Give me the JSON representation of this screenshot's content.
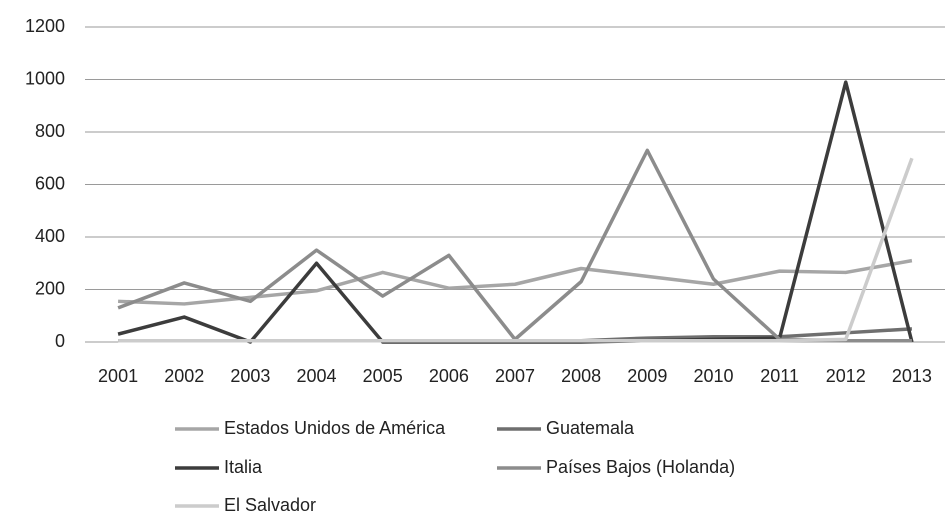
{
  "chart_data": {
    "type": "line",
    "categories": [
      "2001",
      "2002",
      "2003",
      "2004",
      "2005",
      "2006",
      "2007",
      "2008",
      "2009",
      "2010",
      "2011",
      "2012",
      "2013"
    ],
    "series": [
      {
        "name": "Estados Unidos de América",
        "color": "#a6a6a6",
        "values": [
          155,
          145,
          170,
          195,
          265,
          205,
          220,
          280,
          250,
          220,
          270,
          265,
          310
        ]
      },
      {
        "name": "Guatemala",
        "color": "#6f6f6f",
        "values": [
          5,
          5,
          5,
          5,
          5,
          5,
          5,
          5,
          15,
          20,
          20,
          35,
          50
        ]
      },
      {
        "name": "Italia",
        "color": "#3c3c3c",
        "values": [
          30,
          95,
          0,
          300,
          0,
          0,
          0,
          0,
          5,
          10,
          15,
          990,
          0
        ]
      },
      {
        "name": "Países Bajos (Holanda)",
        "color": "#8c8c8c",
        "values": [
          130,
          225,
          155,
          350,
          175,
          330,
          10,
          230,
          730,
          240,
          10,
          5,
          5
        ]
      },
      {
        "name": "El Salvador",
        "color": "#cccccc",
        "values": [
          5,
          5,
          5,
          5,
          5,
          5,
          5,
          5,
          5,
          5,
          5,
          10,
          700
        ]
      }
    ],
    "ylim": [
      0,
      1200
    ],
    "yticks": [
      0,
      200,
      400,
      600,
      800,
      1000,
      1200
    ],
    "grid": true
  }
}
